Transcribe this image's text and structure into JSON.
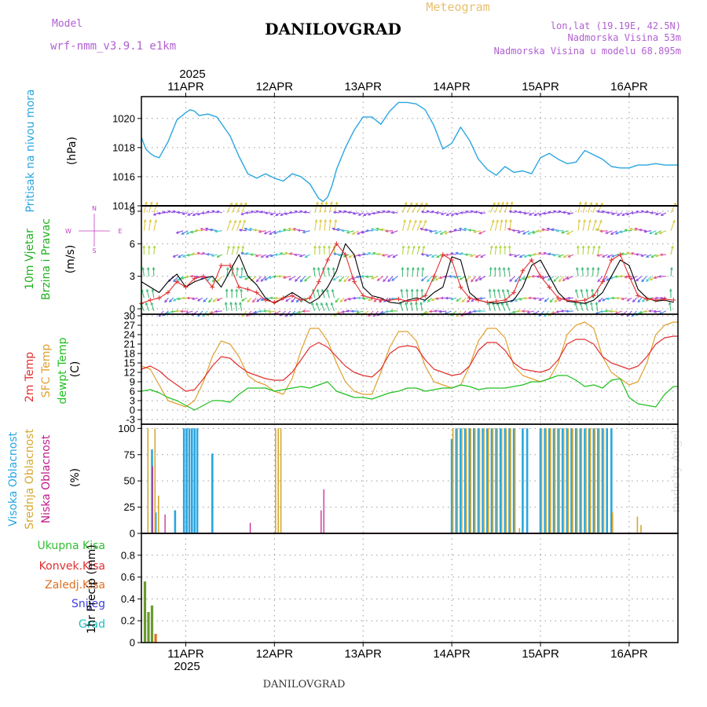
{
  "header": {
    "title": "DANILOVGRAD",
    "subtitle": "Meteogram",
    "model_label": "Model",
    "model_name": "wrf-nmm_v3.9.1 e1km",
    "lonlat": "lon,lat (19.19E, 42.5N)",
    "elevation": "Nadmorska Visina 53m",
    "model_elevation": "Nadmorska Visina u modelu 68.895m",
    "footer": "DANILOVGRAD",
    "watermark": "made by Angel",
    "year_top": "2025",
    "year_bottom": "2025"
  },
  "colors": {
    "pressure": "#2aa6e0",
    "wind_speed": "#000000",
    "wind_gust": "#e03030",
    "temp2m": "#e03030",
    "sfc_temp": "#e0a030",
    "dewpoint": "#20c020",
    "cloud_high": "#2aa6e0",
    "cloud_mid": "#d4a830",
    "cloud_low": "#c01a8a",
    "precip_total": "#6a9a30",
    "precip_frozen": "#e07020"
  },
  "chart_data": [
    {
      "type": "line",
      "name": "pressure",
      "ylabel_a": "Pritisak na nivou mora",
      "ylabel_b": "(hPa)",
      "ylim": [
        1014,
        1021.5
      ],
      "yticks": [
        1014,
        1016,
        1018,
        1020
      ],
      "x_days": [
        "11APR",
        "12APR",
        "13APR",
        "14APR",
        "15APR",
        "16APR"
      ],
      "xlim": [
        -0.5,
        5.55
      ],
      "series": [
        {
          "x": [
            -0.5,
            -0.45,
            -0.4,
            -0.35,
            -0.3,
            -0.2,
            -0.1,
            0,
            0.05,
            0.1,
            0.15,
            0.25,
            0.35,
            0.5,
            0.6,
            0.7,
            0.8,
            0.9,
            1.0,
            1.1,
            1.2,
            1.3,
            1.4,
            1.5,
            1.55,
            1.6,
            1.65,
            1.7,
            1.8,
            1.9,
            2.0,
            2.1,
            2.2,
            2.3,
            2.4,
            2.5,
            2.6,
            2.7,
            2.8,
            2.9,
            3.0,
            3.1,
            3.2,
            3.3,
            3.4,
            3.5,
            3.6,
            3.7,
            3.8,
            3.9,
            4.0,
            4.1,
            4.2,
            4.3,
            4.4,
            4.5,
            4.6,
            4.7,
            4.8,
            4.9,
            5.0,
            5.1,
            5.2,
            5.3,
            5.4,
            5.5,
            5.55
          ],
          "y": [
            1018.7,
            1017.9,
            1017.6,
            1017.4,
            1017.3,
            1018.4,
            1019.9,
            1020.4,
            1020.6,
            1020.5,
            1020.2,
            1020.3,
            1020.1,
            1018.8,
            1017.4,
            1016.2,
            1015.9,
            1016.2,
            1015.9,
            1015.7,
            1016.2,
            1016.0,
            1015.5,
            1014.5,
            1014.3,
            1014.6,
            1015.4,
            1016.5,
            1018.0,
            1019.2,
            1020.1,
            1020.1,
            1019.6,
            1020.5,
            1021.1,
            1021.1,
            1021.0,
            1020.6,
            1019.5,
            1017.9,
            1018.3,
            1019.4,
            1018.5,
            1017.2,
            1016.5,
            1016.1,
            1016.7,
            1016.3,
            1016.4,
            1016.2,
            1017.3,
            1017.6,
            1017.2,
            1016.9,
            1017.0,
            1017.8,
            1017.5,
            1017.2,
            1016.7,
            1016.6,
            1016.6,
            1016.8,
            1016.8,
            1016.9,
            1016.8,
            1016.8,
            1016.8
          ]
        }
      ]
    },
    {
      "type": "line",
      "name": "wind",
      "ylabel_a": "10m Vjetar",
      "ylabel_b": "Brzina i Pravac",
      "ylabel_c": "(m/s)",
      "compass": [
        "N",
        "S",
        "W",
        "E"
      ],
      "ylim": [
        -0.5,
        9.5
      ],
      "yticks": [
        0,
        3,
        6,
        9
      ],
      "series": [
        {
          "name": "speed",
          "x": [
            -0.5,
            -0.4,
            -0.3,
            -0.2,
            -0.1,
            0,
            0.1,
            0.2,
            0.3,
            0.4,
            0.5,
            0.6,
            0.7,
            0.8,
            0.9,
            1.0,
            1.1,
            1.2,
            1.3,
            1.4,
            1.5,
            1.6,
            1.7,
            1.8,
            1.9,
            2.0,
            2.1,
            2.2,
            2.3,
            2.4,
            2.5,
            2.6,
            2.7,
            2.8,
            2.9,
            3.0,
            3.1,
            3.2,
            3.3,
            3.4,
            3.5,
            3.6,
            3.7,
            3.8,
            3.9,
            4.0,
            4.1,
            4.2,
            4.3,
            4.4,
            4.5,
            4.6,
            4.7,
            4.8,
            4.9,
            5.0,
            5.1,
            5.2,
            5.3,
            5.4,
            5.5
          ],
          "y": [
            2.5,
            2.0,
            1.5,
            2.5,
            3.2,
            2.0,
            2.5,
            2.8,
            3.0,
            2.0,
            3.5,
            5.0,
            3.0,
            2.2,
            1.0,
            0.5,
            1.0,
            1.5,
            1.0,
            0.5,
            1.0,
            2.0,
            3.5,
            6.0,
            5.0,
            2.0,
            1.2,
            1.0,
            0.6,
            0.5,
            0.8,
            1.0,
            0.8,
            1.5,
            2.0,
            4.8,
            4.5,
            1.5,
            0.8,
            0.6,
            0.5,
            0.6,
            0.8,
            2.0,
            4.0,
            4.5,
            3.0,
            1.5,
            0.7,
            0.6,
            0.5,
            0.8,
            1.5,
            3.0,
            4.5,
            4.0,
            1.8,
            1.0,
            0.7,
            0.8,
            0.6
          ]
        },
        {
          "name": "gust",
          "x": [
            -0.5,
            -0.4,
            -0.3,
            -0.2,
            -0.1,
            0,
            0.1,
            0.2,
            0.3,
            0.4,
            0.5,
            0.6,
            0.7,
            0.8,
            0.9,
            1.0,
            1.1,
            1.2,
            1.3,
            1.4,
            1.5,
            1.6,
            1.7,
            1.8,
            1.9,
            2.0,
            2.1,
            2.2,
            2.3,
            2.4,
            2.5,
            2.6,
            2.7,
            2.8,
            2.9,
            3.0,
            3.1,
            3.2,
            3.3,
            3.4,
            3.5,
            3.6,
            3.7,
            3.8,
            3.9,
            4.0,
            4.1,
            4.2,
            4.3,
            4.4,
            4.5,
            4.6,
            4.7,
            4.8,
            4.9,
            5.0,
            5.1,
            5.2,
            5.3,
            5.4,
            5.5
          ],
          "y": [
            0.5,
            0.8,
            1.0,
            1.5,
            2.5,
            2.0,
            2.8,
            3.0,
            2.0,
            4.0,
            4.0,
            2.0,
            1.8,
            1.5,
            0.8,
            0.6,
            1.0,
            1.2,
            0.8,
            1.0,
            2.5,
            4.5,
            6.0,
            5.0,
            2.5,
            1.2,
            1.0,
            0.8,
            0.8,
            0.9,
            0.7,
            0.8,
            1.2,
            3.0,
            5.0,
            4.5,
            2.0,
            1.0,
            0.8,
            0.6,
            0.7,
            0.8,
            1.5,
            3.5,
            4.5,
            3.0,
            2.0,
            1.0,
            0.8,
            0.7,
            0.8,
            1.2,
            2.5,
            4.5,
            5.0,
            3.0,
            1.2,
            0.9,
            0.8,
            0.9,
            0.8
          ]
        }
      ]
    },
    {
      "type": "line",
      "name": "temperature",
      "ylabel_a": "2m Temp",
      "ylabel_b": "SFC Temp",
      "ylabel_c": "dewpt Temp",
      "ylabel_d": "(C)",
      "ylim": [
        -4.5,
        30.5
      ],
      "yticks": [
        -3,
        0,
        3,
        6,
        9,
        12,
        15,
        18,
        21,
        24,
        27,
        30
      ],
      "series": [
        {
          "name": "2m",
          "x": [
            -0.5,
            -0.4,
            -0.3,
            -0.2,
            -0.1,
            0,
            0.1,
            0.2,
            0.3,
            0.4,
            0.5,
            0.6,
            0.7,
            0.8,
            0.9,
            1.0,
            1.1,
            1.2,
            1.3,
            1.4,
            1.5,
            1.6,
            1.7,
            1.8,
            1.9,
            2.0,
            2.1,
            2.2,
            2.3,
            2.4,
            2.5,
            2.6,
            2.7,
            2.8,
            2.9,
            3.0,
            3.1,
            3.2,
            3.3,
            3.4,
            3.5,
            3.6,
            3.7,
            3.8,
            3.9,
            4.0,
            4.1,
            4.2,
            4.3,
            4.4,
            4.5,
            4.6,
            4.7,
            4.8,
            4.9,
            5.0,
            5.1,
            5.2,
            5.3,
            5.4,
            5.5,
            5.55
          ],
          "y": [
            13,
            14,
            12.5,
            10,
            8,
            6,
            6.5,
            10,
            14,
            17,
            16.5,
            14,
            12,
            11,
            10,
            9.5,
            9.5,
            12,
            16,
            20,
            21.5,
            20,
            17,
            14,
            12,
            11,
            10.5,
            13,
            18,
            20,
            20.5,
            20,
            16,
            13,
            12,
            11,
            11.5,
            14,
            19,
            21.5,
            21.5,
            19,
            15,
            13,
            12.5,
            12,
            13,
            16,
            21,
            22.5,
            22.5,
            21,
            17,
            15,
            14,
            13,
            14,
            17,
            21,
            23,
            23.5,
            23.5
          ]
        },
        {
          "name": "sfc",
          "x": [
            -0.5,
            -0.4,
            -0.3,
            -0.2,
            -0.1,
            0,
            0.1,
            0.2,
            0.3,
            0.4,
            0.5,
            0.6,
            0.7,
            0.8,
            0.9,
            1.0,
            1.1,
            1.2,
            1.3,
            1.4,
            1.5,
            1.6,
            1.7,
            1.8,
            1.9,
            2.0,
            2.1,
            2.2,
            2.3,
            2.4,
            2.5,
            2.6,
            2.7,
            2.8,
            2.9,
            3.0,
            3.1,
            3.2,
            3.3,
            3.4,
            3.5,
            3.6,
            3.7,
            3.8,
            3.9,
            4.0,
            4.1,
            4.2,
            4.3,
            4.4,
            4.5,
            4.6,
            4.7,
            4.8,
            4.9,
            5.0,
            5.1,
            5.2,
            5.3,
            5.4,
            5.5,
            5.55
          ],
          "y": [
            14,
            13,
            8,
            3,
            2,
            1,
            3,
            9,
            17,
            22,
            21,
            17,
            11,
            9,
            8,
            6,
            5,
            10,
            19,
            26,
            26,
            22,
            15,
            9,
            6,
            5,
            5,
            12,
            20,
            25,
            25,
            22,
            14,
            9,
            8,
            7,
            8,
            14,
            22,
            26,
            26,
            23,
            14,
            11,
            10,
            9,
            10,
            15,
            24,
            27,
            28,
            26,
            17,
            12,
            10,
            8,
            9,
            15,
            24,
            27,
            28,
            28
          ]
        },
        {
          "name": "dewpt",
          "x": [
            -0.5,
            -0.4,
            -0.3,
            -0.2,
            -0.1,
            0,
            0.1,
            0.2,
            0.3,
            0.4,
            0.5,
            0.6,
            0.7,
            0.8,
            0.9,
            1.0,
            1.1,
            1.2,
            1.3,
            1.4,
            1.5,
            1.6,
            1.7,
            1.8,
            1.9,
            2.0,
            2.1,
            2.2,
            2.3,
            2.4,
            2.5,
            2.6,
            2.7,
            2.8,
            2.9,
            3.0,
            3.1,
            3.2,
            3.3,
            3.4,
            3.5,
            3.6,
            3.7,
            3.8,
            3.9,
            4.0,
            4.1,
            4.2,
            4.3,
            4.4,
            4.5,
            4.6,
            4.7,
            4.8,
            4.9,
            5.0,
            5.1,
            5.2,
            5.3,
            5.4,
            5.5,
            5.55
          ],
          "y": [
            6,
            6.5,
            5.5,
            4,
            3,
            1.5,
            0,
            1.5,
            3,
            3,
            2.5,
            5,
            7,
            7,
            7,
            6,
            6.5,
            7,
            7.5,
            7,
            8,
            9,
            6,
            5,
            4,
            4,
            3.5,
            4.5,
            5.5,
            6,
            7,
            7,
            6,
            6.5,
            7,
            7,
            8,
            7.5,
            6.5,
            7,
            7,
            7,
            7.5,
            8,
            9,
            9,
            10,
            11,
            11,
            9.5,
            7.5,
            8,
            7,
            9.5,
            10,
            4,
            2,
            1.5,
            1,
            5,
            7.5,
            7.5
          ]
        }
      ]
    },
    {
      "type": "bar",
      "name": "clouds",
      "ylabel_a": "Visoka Oblacnost",
      "ylabel_b": "Srednja Oblacnost",
      "ylabel_c": "Niska Oblacnost",
      "ylabel_d": "(%)",
      "ylim": [
        0,
        104
      ],
      "yticks": [
        0,
        25,
        50,
        75,
        100
      ],
      "series": [
        {
          "name": "high",
          "x": [
            -0.38,
            -0.34,
            -0.12,
            -0.02,
            0.01,
            0.04,
            0.07,
            0.1,
            0.13,
            0.3,
            3.0,
            3.05,
            3.1,
            3.15,
            3.2,
            3.25,
            3.3,
            3.35,
            3.4,
            3.45,
            3.5,
            3.55,
            3.6,
            3.65,
            3.7,
            3.8,
            3.85,
            4.0,
            4.05,
            4.1,
            4.15,
            4.2,
            4.25,
            4.3,
            4.35,
            4.4,
            4.45,
            4.5,
            4.55,
            4.6,
            4.65,
            4.7,
            4.75,
            4.8
          ],
          "y": [
            80,
            20,
            22,
            100,
            100,
            100,
            100,
            100,
            100,
            76,
            90,
            100,
            100,
            100,
            100,
            100,
            100,
            100,
            100,
            100,
            100,
            100,
            100,
            100,
            100,
            100,
            100,
            100,
            100,
            100,
            100,
            100,
            100,
            100,
            100,
            100,
            100,
            100,
            100,
            100,
            100,
            100,
            100,
            100
          ]
        },
        {
          "name": "mid",
          "x": [
            -0.44,
            -0.36,
            -0.32,
            1.0,
            1.03,
            1.06,
            3.0,
            3.05,
            3.1,
            3.15,
            3.2,
            3.25,
            3.3,
            3.35,
            3.4,
            3.45,
            3.5,
            3.55,
            3.6,
            3.65,
            3.7,
            3.75,
            4.0,
            4.05,
            4.1,
            4.15,
            4.2,
            4.25,
            4.3,
            4.35,
            4.4,
            4.45,
            4.5,
            4.55,
            4.6,
            4.65,
            4.7,
            4.8,
            5.08,
            5.12
          ],
          "y": [
            100,
            100,
            36,
            100,
            100,
            100,
            100,
            100,
            100,
            100,
            100,
            100,
            100,
            100,
            100,
            100,
            100,
            100,
            100,
            100,
            100,
            5,
            100,
            100,
            100,
            100,
            100,
            100,
            100,
            100,
            100,
            100,
            100,
            100,
            100,
            100,
            100,
            20,
            16,
            8
          ]
        },
        {
          "name": "low",
          "x": [
            -0.4,
            -0.26,
            0.7,
            1.5,
            1.53
          ],
          "y": [
            64,
            18,
            10,
            22,
            42
          ]
        }
      ]
    },
    {
      "type": "bar",
      "name": "precip",
      "ylabel_c": "1hr Precip (mm)",
      "legend": [
        "Ukupna Kisa",
        "Konvek.Kisa",
        "Zaledj.Kisa",
        "Snijeg",
        "Grad"
      ],
      "legend_colors": [
        "#30c030",
        "#e03030",
        "#e07020",
        "#4040e0",
        "#20c0c0"
      ],
      "ylim": [
        0,
        1.0
      ],
      "yticks": [
        0,
        0.2,
        0.4,
        0.6,
        0.8
      ],
      "series": [
        {
          "name": "Ukupna Kisa",
          "x": [
            -0.46,
            -0.42,
            -0.38,
            -0.34
          ],
          "y": [
            0.56,
            0.28,
            0.34,
            0.08
          ]
        }
      ]
    }
  ]
}
